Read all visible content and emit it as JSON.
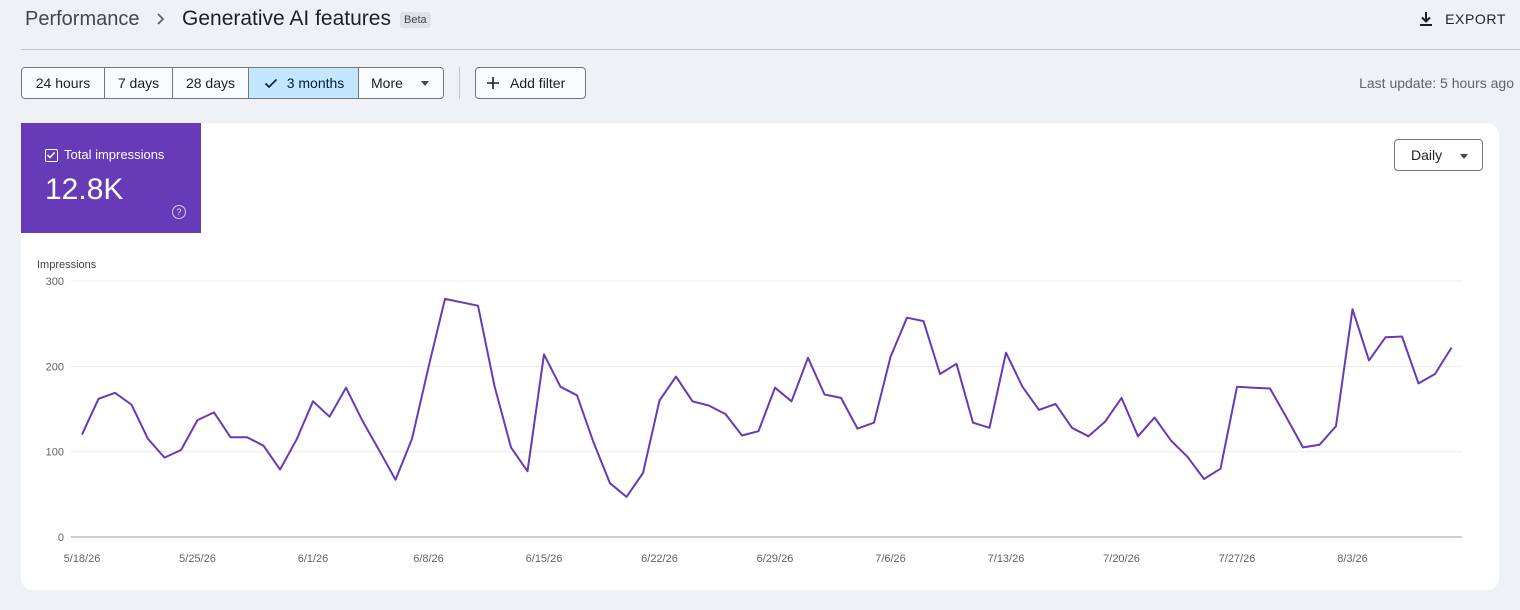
{
  "breadcrumb": {
    "root": "Performance",
    "title": "Generative AI features",
    "badge": "Beta"
  },
  "header": {
    "export_label": "EXPORT"
  },
  "date_range": {
    "options": [
      {
        "label": "24 hours",
        "active": false
      },
      {
        "label": "7 days",
        "active": false
      },
      {
        "label": "28 days",
        "active": false
      },
      {
        "label": "3 months",
        "active": true
      },
      {
        "label": "More",
        "active": false
      }
    ]
  },
  "filter": {
    "add_label": "Add filter"
  },
  "status": {
    "last_update": "Last update: 5 hours ago"
  },
  "metric": {
    "label": "Total impressions",
    "value": "12.8K",
    "color": "#673ab7",
    "help_symbol": "?"
  },
  "granularity": {
    "selected": "Daily"
  },
  "chart_data": {
    "type": "line",
    "ylabel": "Impressions",
    "ylim": [
      0,
      300
    ],
    "yticks": [
      0,
      100,
      200,
      300
    ],
    "grid": true,
    "xticks": [
      "5/18/26",
      "5/25/26",
      "6/1/26",
      "6/8/26",
      "6/15/26",
      "6/22/26",
      "6/29/26",
      "7/6/26",
      "7/13/26",
      "7/20/26",
      "7/27/26",
      "8/3/26"
    ],
    "start_date": "5/18/26",
    "series": [
      {
        "color": "#673ab7",
        "values": [
          120,
          162,
          169,
          155,
          115,
          93,
          102,
          137,
          146,
          117,
          117,
          107,
          79,
          114,
          159,
          141,
          175,
          136,
          102,
          67,
          115,
          199,
          279,
          275,
          271,
          177,
          105,
          77,
          214,
          176,
          166,
          111,
          63,
          47,
          75,
          160,
          188,
          159,
          154,
          144,
          119,
          124,
          175,
          159,
          210,
          167,
          163,
          127,
          134,
          211,
          257,
          253,
          191,
          203,
          134,
          128,
          216,
          176,
          149,
          156,
          128,
          118,
          135,
          163,
          118,
          140,
          113,
          94,
          68,
          80,
          176,
          175,
          174,
          140,
          105,
          108,
          130,
          267,
          207,
          234,
          235,
          180,
          191,
          222
        ]
      }
    ]
  }
}
